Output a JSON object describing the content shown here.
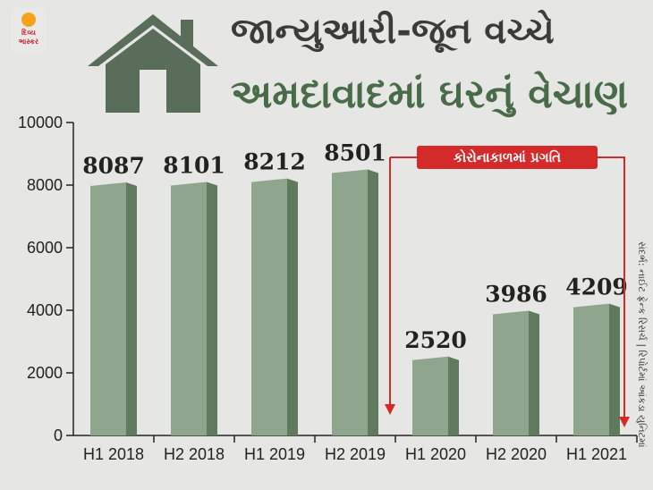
{
  "logo": {
    "brand": "દિવ્ય ભાસ્કર",
    "sun_color": "#f7a21b"
  },
  "header": {
    "line1": "જાન્યુઆરી-જૂન વચ્ચે",
    "line2": "અમદાવાદમાં ઘરનું વેચાણ",
    "icon": "house-icon"
  },
  "annotation": {
    "text": "કોરોનાકાળમાં પ્રગતિ",
    "color": "#d42a2a"
  },
  "source": "સંદર્ભ: નાઈટ ફ્રેન્ક રિસર્ચ | રિપોર્ટમાં આંકડા યુનિટમાં",
  "chart_data": {
    "type": "bar",
    "categories": [
      "H1 2018",
      "H2 2018",
      "H1 2019",
      "H2 2019",
      "H1 2020",
      "H2 2020",
      "H1 2021"
    ],
    "values": [
      8087,
      8101,
      8212,
      8501,
      2520,
      3986,
      4209
    ],
    "ylim": [
      0,
      10000
    ],
    "yticks": [
      0,
      2000,
      4000,
      6000,
      8000,
      10000
    ],
    "grid": false,
    "bar_color_light": "#8fa58d",
    "bar_color_dark": "#5f7a5d"
  }
}
